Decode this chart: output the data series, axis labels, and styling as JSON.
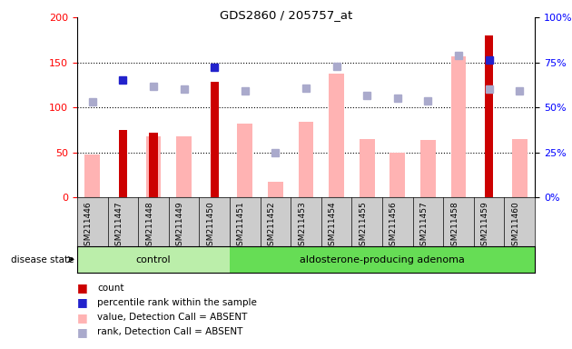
{
  "title": "GDS2860 / 205757_at",
  "samples": [
    "GSM211446",
    "GSM211447",
    "GSM211448",
    "GSM211449",
    "GSM211450",
    "GSM211451",
    "GSM211452",
    "GSM211453",
    "GSM211454",
    "GSM211455",
    "GSM211456",
    "GSM211457",
    "GSM211458",
    "GSM211459",
    "GSM211460"
  ],
  "control_indices": [
    0,
    1,
    2,
    3,
    4
  ],
  "adenoma_indices": [
    5,
    6,
    7,
    8,
    9,
    10,
    11,
    12,
    13,
    14
  ],
  "count": [
    null,
    75,
    72,
    null,
    128,
    null,
    null,
    null,
    null,
    null,
    null,
    null,
    null,
    180,
    null
  ],
  "percentile_rank": [
    null,
    130,
    null,
    null,
    145,
    null,
    null,
    null,
    null,
    null,
    null,
    null,
    null,
    153,
    null
  ],
  "value_absent": [
    47,
    null,
    68,
    68,
    null,
    82,
    17,
    84,
    137,
    65,
    50,
    64,
    157,
    null,
    65
  ],
  "rank_absent": [
    106,
    null,
    123,
    120,
    null,
    118,
    50,
    121,
    146,
    113,
    110,
    107,
    158,
    120,
    118
  ],
  "ylim": [
    0,
    200
  ],
  "yticks_left": [
    0,
    50,
    100,
    150,
    200
  ],
  "yticks_right": [
    0,
    25,
    50,
    75,
    100
  ],
  "ytick_labels_right": [
    "0%",
    "25%",
    "50%",
    "75%",
    "100%"
  ],
  "count_color": "#cc0000",
  "percentile_color": "#2222cc",
  "value_absent_color": "#ffb3b3",
  "rank_absent_color": "#aaaacc",
  "control_color": "#bbeeaa",
  "adenoma_color": "#66dd55",
  "bg_color": "#cccccc",
  "plot_bg": "#ffffff"
}
